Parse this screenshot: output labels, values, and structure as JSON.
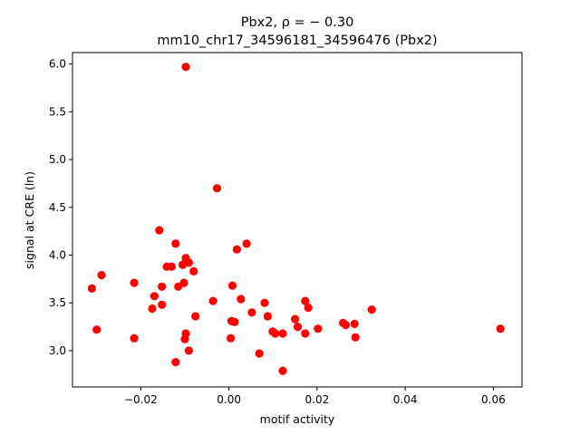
{
  "chart_data": {
    "type": "scatter",
    "title_line1": "Pbx2, ρ = − 0.30",
    "title_line2": "mm10_chr17_34596181_34596476 (Pbx2)",
    "xlabel": "motif activity",
    "ylabel": "signal at CRE (ln)",
    "xlim": [
      -0.0355,
      0.0665
    ],
    "ylim": [
      2.62,
      6.12
    ],
    "xticks": [
      -0.02,
      0.0,
      0.02,
      0.04,
      0.06
    ],
    "xtick_labels": [
      "−0.02",
      "0.00",
      "0.02",
      "0.04",
      "0.06"
    ],
    "yticks": [
      3.0,
      3.5,
      4.0,
      4.5,
      5.0,
      5.5,
      6.0
    ],
    "ytick_labels": [
      "3.0",
      "3.5",
      "4.0",
      "4.5",
      "5.0",
      "5.5",
      "6.0"
    ],
    "grid": false,
    "marker_color": "#ff0000",
    "points": [
      {
        "x": -0.0311,
        "y": 3.65
      },
      {
        "x": -0.03,
        "y": 3.22
      },
      {
        "x": -0.0289,
        "y": 3.79
      },
      {
        "x": -0.0215,
        "y": 3.71
      },
      {
        "x": -0.0215,
        "y": 3.13
      },
      {
        "x": -0.0174,
        "y": 3.44
      },
      {
        "x": -0.0169,
        "y": 3.57
      },
      {
        "x": -0.0158,
        "y": 4.26
      },
      {
        "x": -0.0152,
        "y": 3.67
      },
      {
        "x": -0.0152,
        "y": 3.48
      },
      {
        "x": -0.0141,
        "y": 3.88
      },
      {
        "x": -0.013,
        "y": 3.88
      },
      {
        "x": -0.0121,
        "y": 4.12
      },
      {
        "x": -0.0121,
        "y": 2.88
      },
      {
        "x": -0.0115,
        "y": 3.67
      },
      {
        "x": -0.0105,
        "y": 3.9
      },
      {
        "x": -0.0102,
        "y": 3.71
      },
      {
        "x": -0.01,
        "y": 3.12
      },
      {
        "x": -0.0098,
        "y": 3.18
      },
      {
        "x": -0.0098,
        "y": 3.97
      },
      {
        "x": -0.0098,
        "y": 5.97
      },
      {
        "x": -0.0091,
        "y": 3.92
      },
      {
        "x": -0.0091,
        "y": 3.0
      },
      {
        "x": -0.008,
        "y": 3.83
      },
      {
        "x": -0.0076,
        "y": 3.36
      },
      {
        "x": -0.0036,
        "y": 3.52
      },
      {
        "x": -0.0027,
        "y": 4.7
      },
      {
        "x": 0.0004,
        "y": 3.13
      },
      {
        "x": 0.0006,
        "y": 3.31
      },
      {
        "x": 0.0008,
        "y": 3.68
      },
      {
        "x": 0.0013,
        "y": 3.3
      },
      {
        "x": 0.0018,
        "y": 4.06
      },
      {
        "x": 0.0027,
        "y": 3.54
      },
      {
        "x": 0.004,
        "y": 4.12
      },
      {
        "x": 0.0052,
        "y": 3.4
      },
      {
        "x": 0.0069,
        "y": 2.97
      },
      {
        "x": 0.0081,
        "y": 3.5
      },
      {
        "x": 0.0088,
        "y": 3.36
      },
      {
        "x": 0.0099,
        "y": 3.2
      },
      {
        "x": 0.0105,
        "y": 3.18
      },
      {
        "x": 0.0122,
        "y": 3.18
      },
      {
        "x": 0.0122,
        "y": 2.79
      },
      {
        "x": 0.015,
        "y": 3.33
      },
      {
        "x": 0.0156,
        "y": 3.25
      },
      {
        "x": 0.0173,
        "y": 3.52
      },
      {
        "x": 0.0173,
        "y": 3.18
      },
      {
        "x": 0.018,
        "y": 3.45
      },
      {
        "x": 0.0202,
        "y": 3.23
      },
      {
        "x": 0.0259,
        "y": 3.29
      },
      {
        "x": 0.0265,
        "y": 3.27
      },
      {
        "x": 0.0285,
        "y": 3.28
      },
      {
        "x": 0.0287,
        "y": 3.14
      },
      {
        "x": 0.0324,
        "y": 3.43
      },
      {
        "x": 0.0616,
        "y": 3.23
      }
    ]
  }
}
